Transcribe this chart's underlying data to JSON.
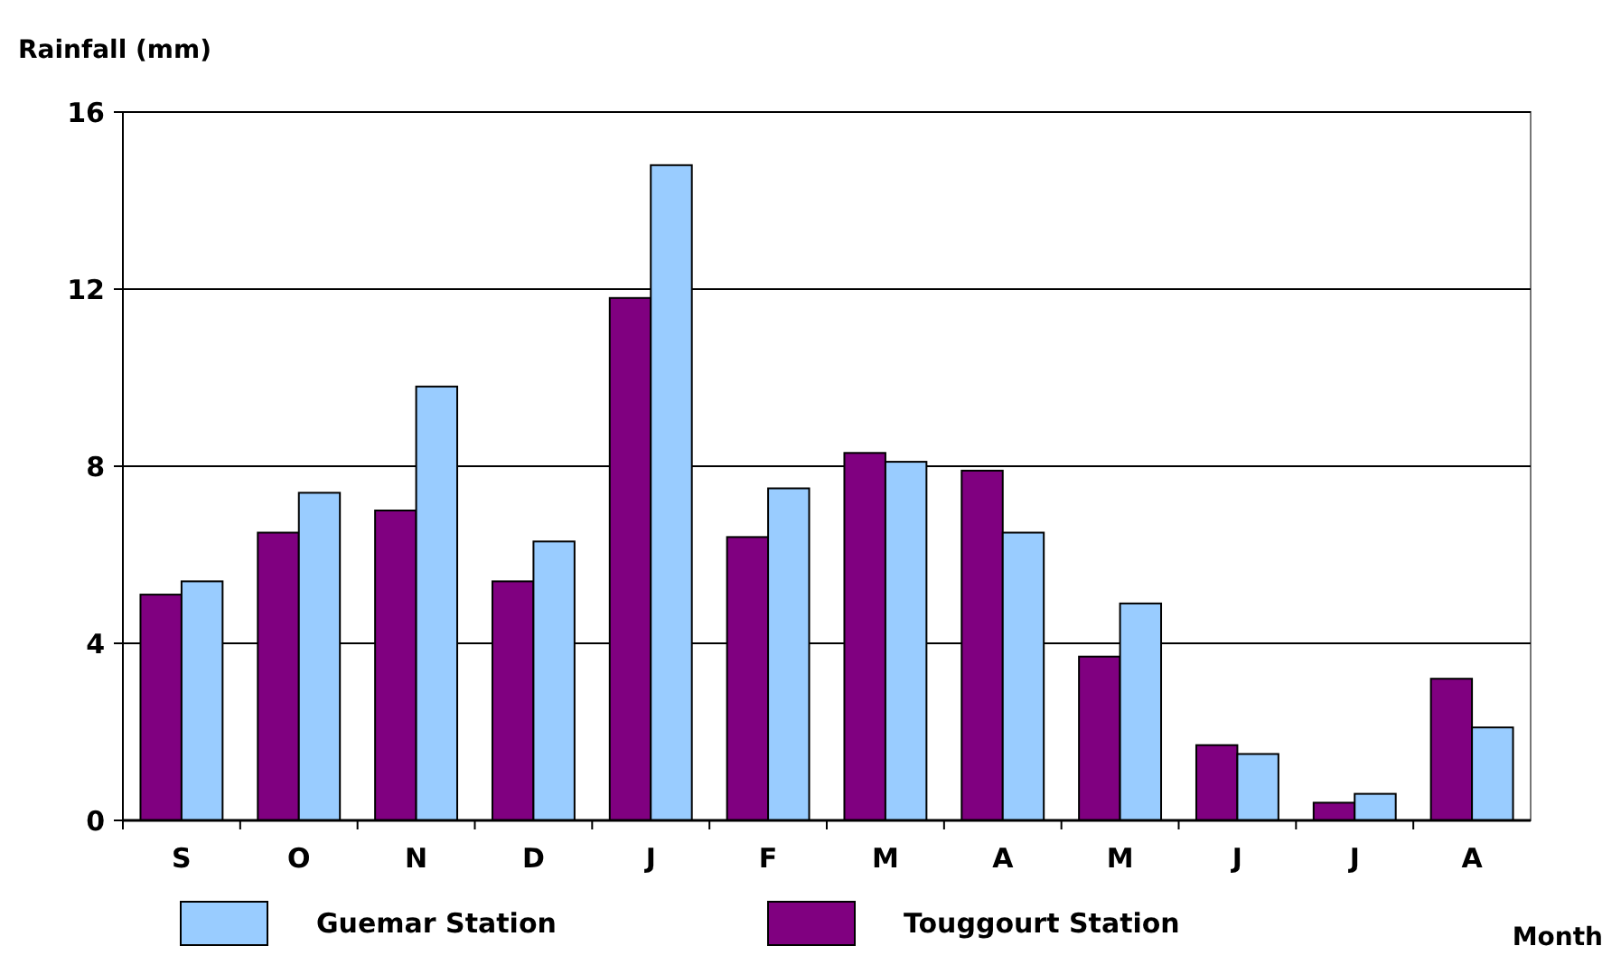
{
  "chart_data": {
    "type": "bar",
    "ylabel": "Rainfall  (mm)",
    "xlabel": "Month",
    "categories": [
      "S",
      "O",
      "N",
      "D",
      "J",
      "F",
      "M",
      "A",
      "M",
      "J",
      "J",
      "A"
    ],
    "series": [
      {
        "name": "Touggourt Station",
        "color": "#800080",
        "values": [
          5.1,
          6.5,
          7.0,
          5.4,
          11.8,
          6.4,
          8.3,
          7.9,
          3.7,
          1.7,
          0.4,
          3.2
        ]
      },
      {
        "name": "Guemar Station",
        "color": "#99ccff",
        "values": [
          5.4,
          7.4,
          9.8,
          6.3,
          14.8,
          7.5,
          8.1,
          6.5,
          4.9,
          1.5,
          0.6,
          2.1
        ]
      }
    ],
    "ylim": [
      0,
      16
    ],
    "yticks": [
      0,
      4,
      8,
      12,
      16
    ],
    "grid": "y",
    "legend": "bottom"
  }
}
